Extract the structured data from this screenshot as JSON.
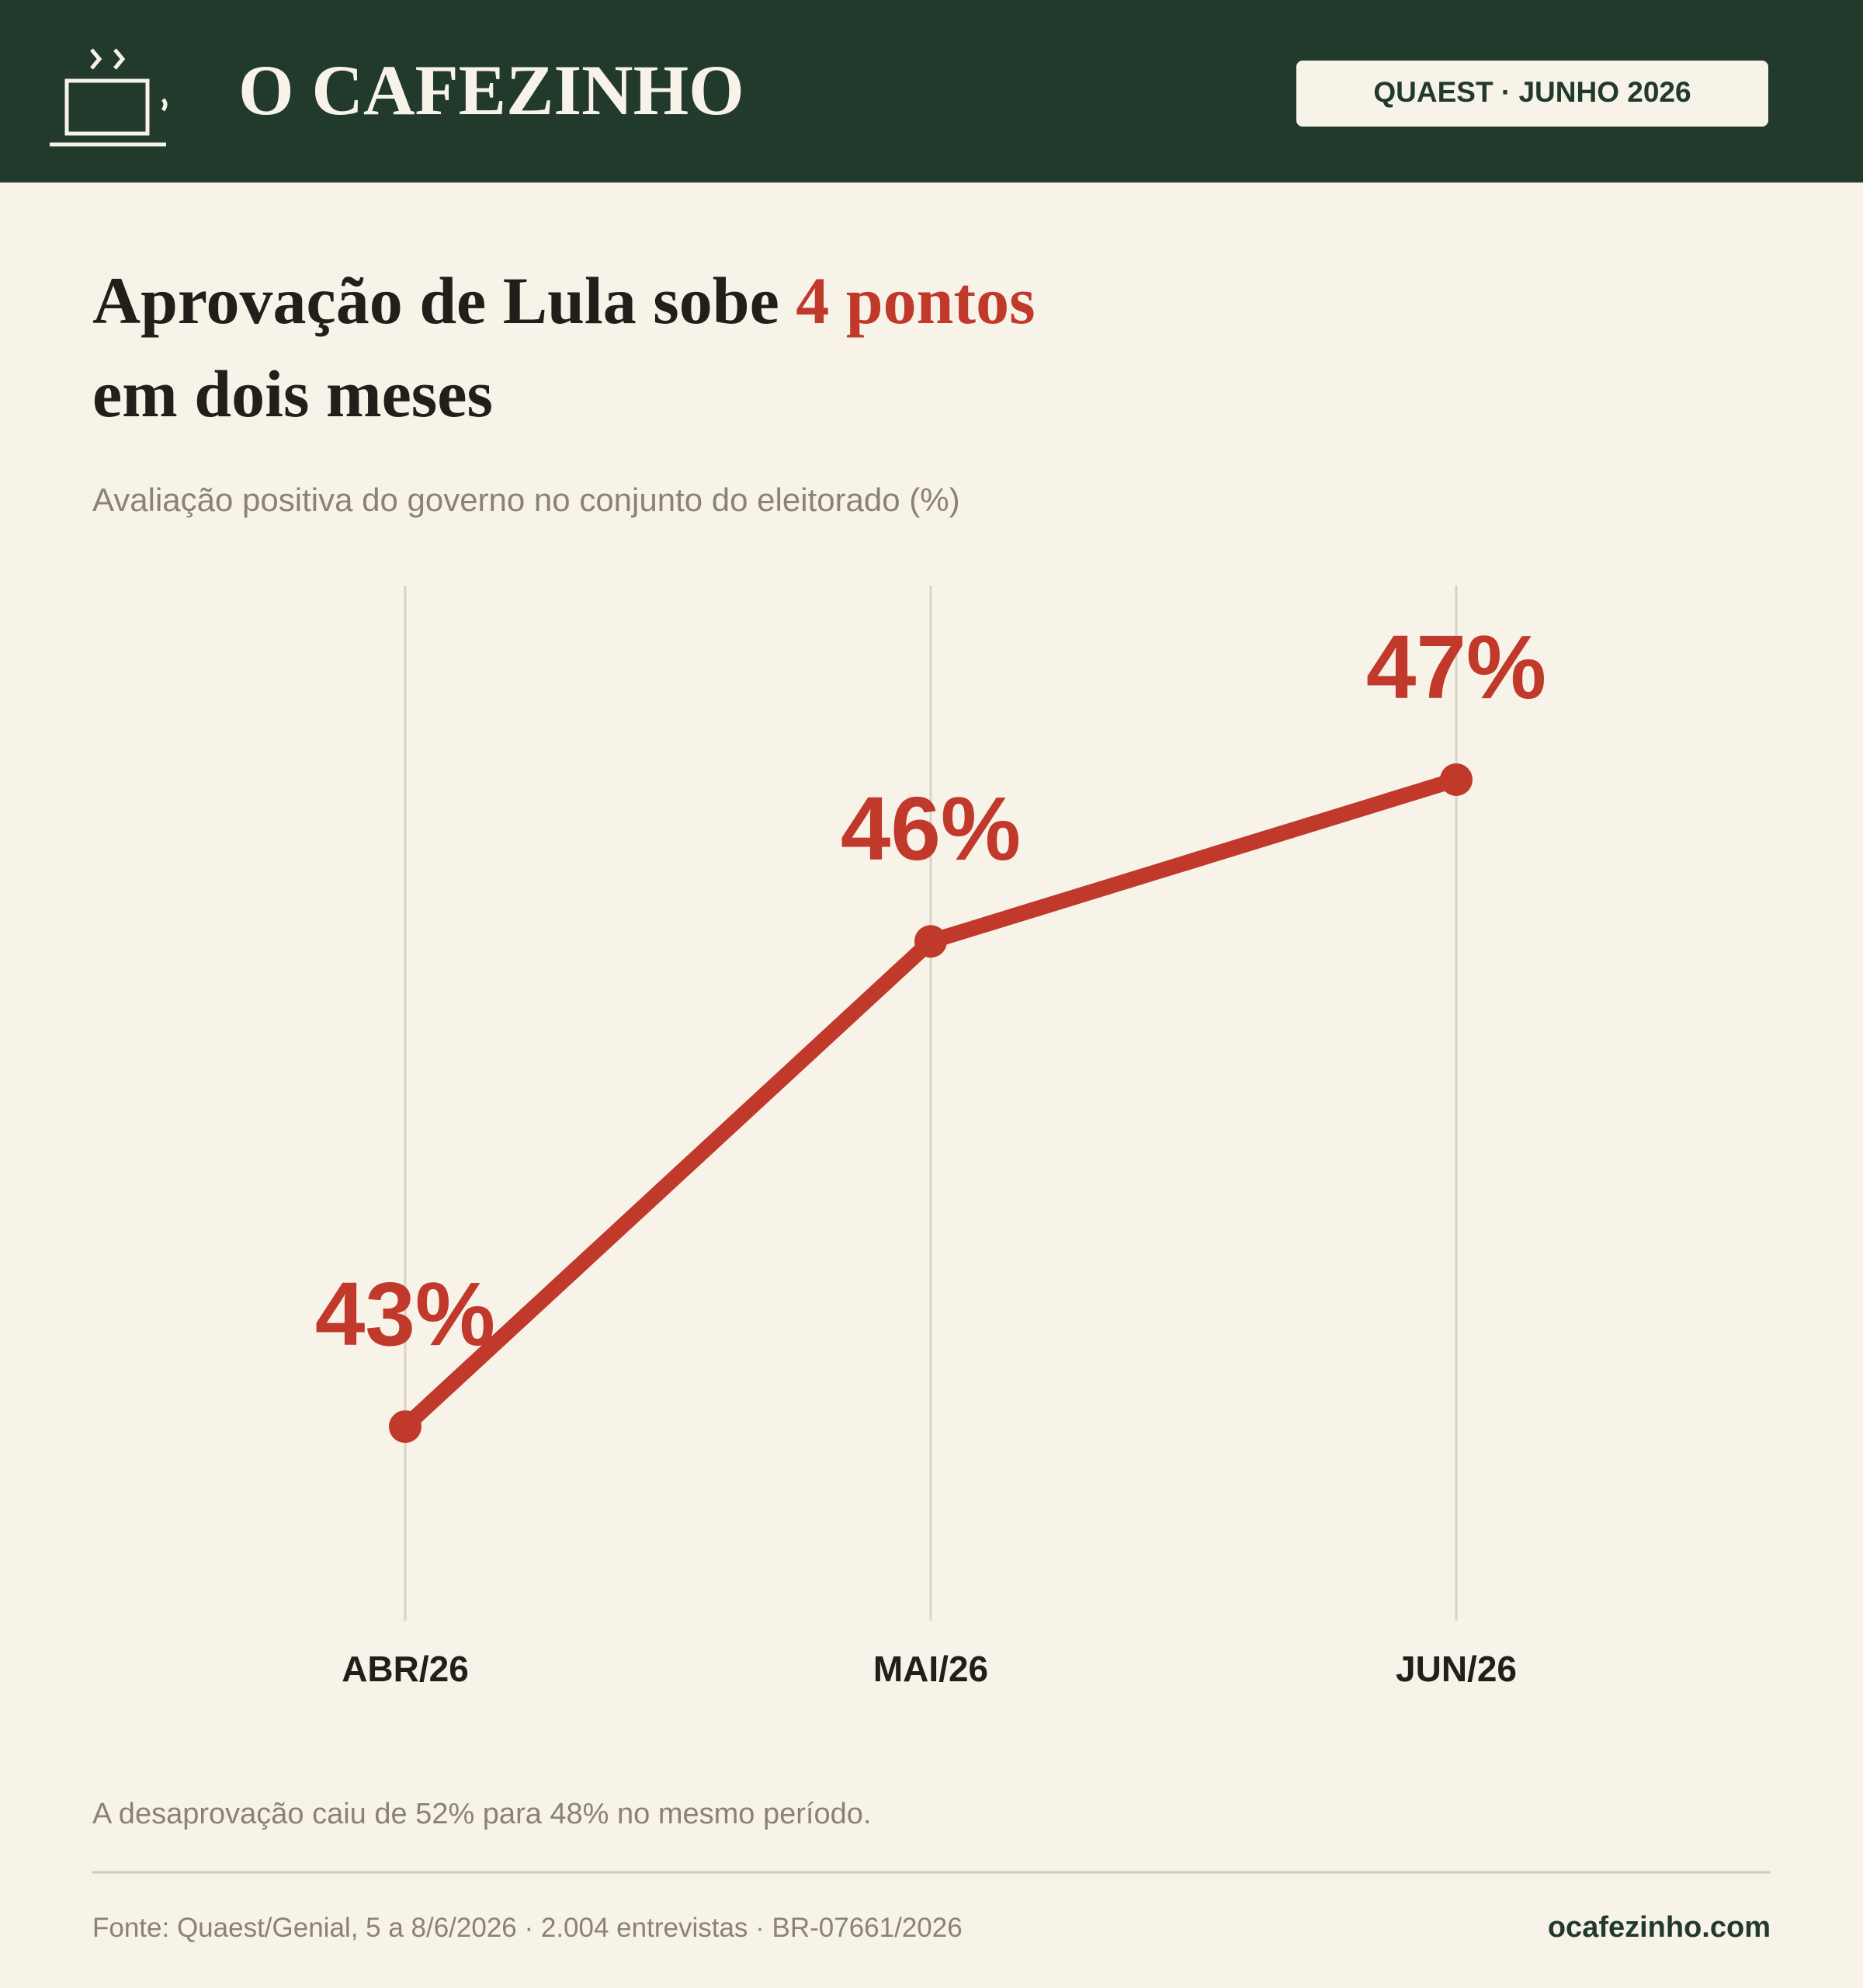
{
  "header": {
    "brand": "O CAFEZINHO",
    "badge": "QUAEST · JUNHO 2026"
  },
  "chart_data": {
    "type": "line",
    "title": {
      "lead": "Aprovação de Lula sobe ",
      "highlight": "4 pontos",
      "line2": "em dois meses"
    },
    "subtitle": "Avaliação positiva do governo no conjunto do eleitorado (%)",
    "categories": [
      "ABR/26",
      "MAI/26",
      "JUN/26"
    ],
    "values": [
      43,
      46,
      47
    ],
    "value_labels": [
      "43%",
      "46%",
      "47%"
    ],
    "color": "#c0392b",
    "ylim": [
      41.8,
      48.2
    ]
  },
  "footer": {
    "note": "A desaprovação caiu de 52% para 48% no mesmo período.",
    "source": "Fonte: Quaest/Genial, 5 a 8/6/2026 · 2.004 entrevistas · BR-07661/2026",
    "site": "ocafezinho.com"
  }
}
